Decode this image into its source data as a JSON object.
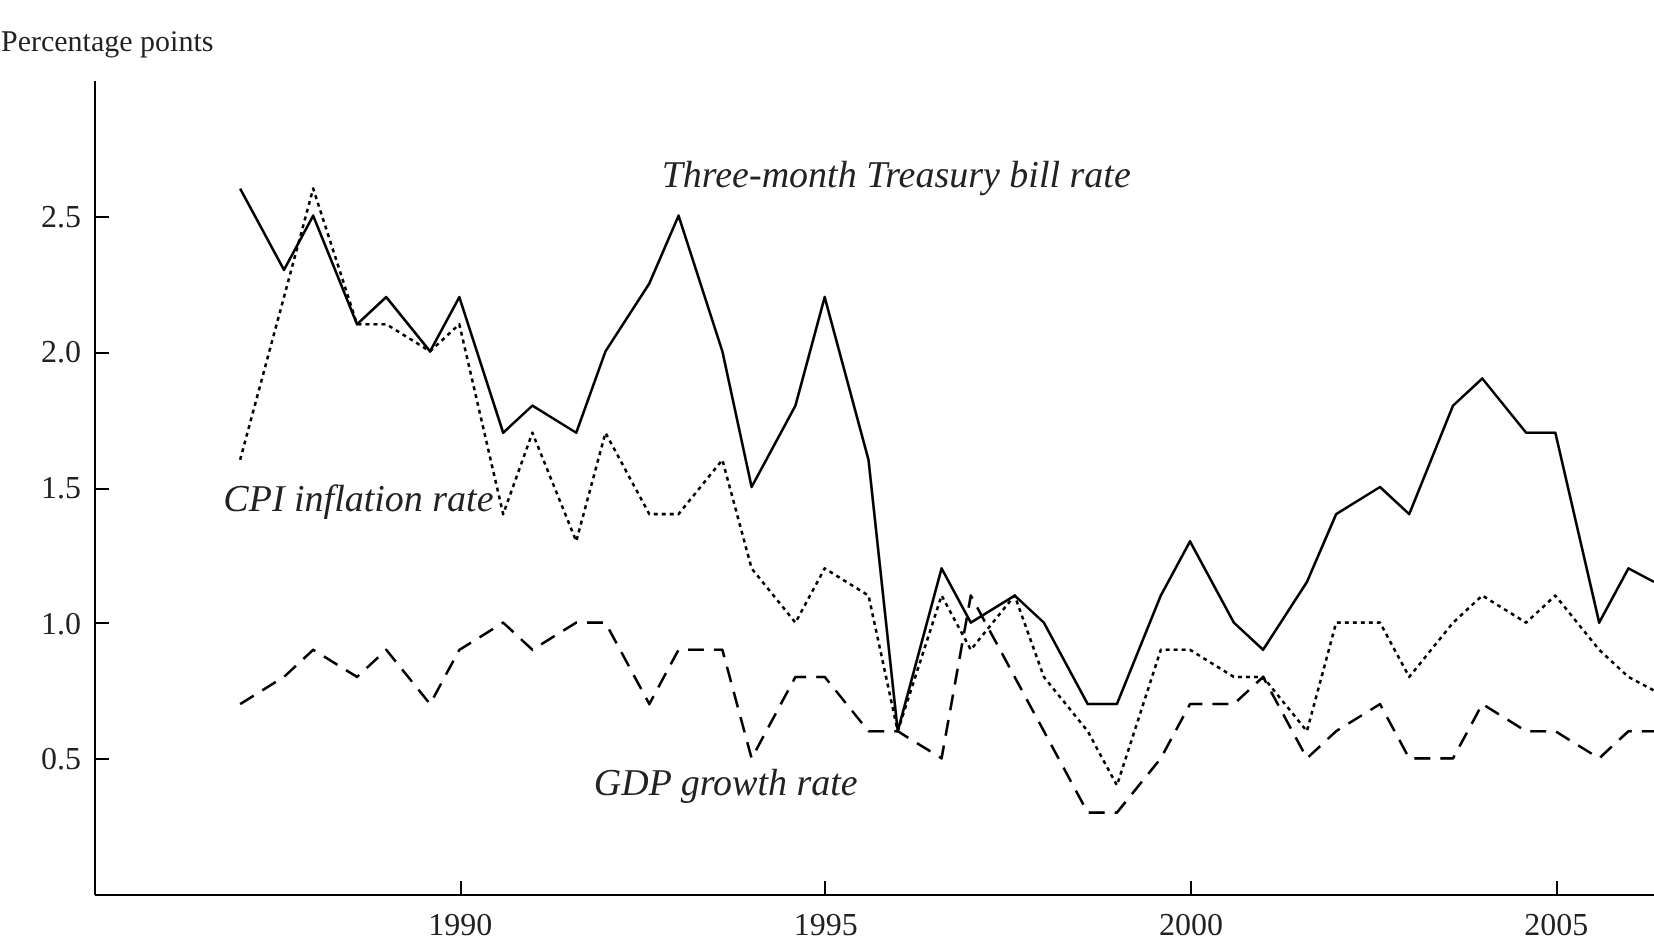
{
  "chart_data": {
    "type": "line",
    "ylabel": "Percentage points",
    "xlim": [
      1985,
      2006.35
    ],
    "xticks": [
      1990,
      1995,
      2000,
      2005
    ],
    "ylim": [
      0,
      3
    ],
    "yticks": [
      {
        "value": 0.5,
        "label": "0.5"
      },
      {
        "value": 1,
        "label": "1.0"
      },
      {
        "value": 1.5,
        "label": "1.5"
      },
      {
        "value": 2,
        "label": "2.0"
      },
      {
        "value": 2.5,
        "label": "2.5"
      }
    ],
    "marker": "none",
    "series": [
      {
        "name": "Three-month Treasury bill rate",
        "color": "#000000",
        "line_style": "solid",
        "x": [
          1987,
          1987.6,
          1988,
          1988.6,
          1989,
          1989.6,
          1990,
          1990.6,
          1991,
          1991.6,
          1992,
          1992.6,
          1993,
          1993.6,
          1994,
          1994.6,
          1995,
          1995.6,
          1996,
          1996.6,
          1997,
          1997.6,
          1998,
          1998.6,
          1999,
          1999.6,
          2000,
          2000.6,
          2001,
          2001.6,
          2002,
          2002.6,
          2003,
          2003.6,
          2004,
          2004.6,
          2005,
          2005.6,
          2006,
          2006.35
        ],
        "values": [
          2.6,
          2.3,
          2.5,
          2.1,
          2.2,
          2.0,
          2.2,
          1.7,
          1.8,
          1.7,
          2.0,
          2.25,
          2.5,
          2.0,
          1.5,
          1.8,
          2.2,
          1.6,
          0.6,
          1.2,
          1.0,
          1.1,
          1.0,
          0.7,
          0.7,
          1.1,
          1.3,
          1.0,
          0.9,
          1.15,
          1.4,
          1.5,
          1.4,
          1.8,
          1.9,
          1.7,
          1.7,
          1.0,
          1.2,
          1.15
        ]
      },
      {
        "name": "CPI inflation rate",
        "color": "#000000",
        "line_style": "dotted",
        "x": [
          1987,
          1987.6,
          1988,
          1988.6,
          1989,
          1989.6,
          1990,
          1990.6,
          1991,
          1991.6,
          1992,
          1992.6,
          1993,
          1993.6,
          1994,
          1994.6,
          1995,
          1995.6,
          1996,
          1996.6,
          1997,
          1997.6,
          1998,
          1998.6,
          1999,
          1999.6,
          2000,
          2000.6,
          2001,
          2001.6,
          2002,
          2002.6,
          2003,
          2003.6,
          2004,
          2004.6,
          2005,
          2005.6,
          2006,
          2006.35
        ],
        "values": [
          1.6,
          2.2,
          2.6,
          2.1,
          2.1,
          2.0,
          2.1,
          1.4,
          1.7,
          1.3,
          1.7,
          1.4,
          1.4,
          1.6,
          1.2,
          1.0,
          1.2,
          1.1,
          0.6,
          1.1,
          0.9,
          1.1,
          0.8,
          0.6,
          0.4,
          0.9,
          0.9,
          0.8,
          0.8,
          0.6,
          1.0,
          1.0,
          0.8,
          1.0,
          1.1,
          1.0,
          1.1,
          0.9,
          0.8,
          0.75
        ]
      },
      {
        "name": "GDP growth rate",
        "color": "#000000",
        "line_style": "dashed",
        "x": [
          1987,
          1987.6,
          1988,
          1988.6,
          1989,
          1989.6,
          1990,
          1990.6,
          1991,
          1991.6,
          1992,
          1992.6,
          1993,
          1993.6,
          1994,
          1994.6,
          1995,
          1995.6,
          1996,
          1996.6,
          1997,
          1997.6,
          1998,
          1998.6,
          1999,
          1999.6,
          2000,
          2000.6,
          2001,
          2001.6,
          2002,
          2002.6,
          2003,
          2003.6,
          2004,
          2004.6,
          2005,
          2005.6,
          2006,
          2006.35
        ],
        "values": [
          0.7,
          0.8,
          0.9,
          0.8,
          0.9,
          0.7,
          0.9,
          1.0,
          0.9,
          1.0,
          1.0,
          0.7,
          0.9,
          0.9,
          0.5,
          0.8,
          0.8,
          0.6,
          0.6,
          0.5,
          1.1,
          0.8,
          0.6,
          0.3,
          0.3,
          0.5,
          0.7,
          0.7,
          0.8,
          0.5,
          0.6,
          0.7,
          0.5,
          0.5,
          0.7,
          0.6,
          0.6,
          0.5,
          0.6,
          0.6
        ]
      }
    ]
  }
}
